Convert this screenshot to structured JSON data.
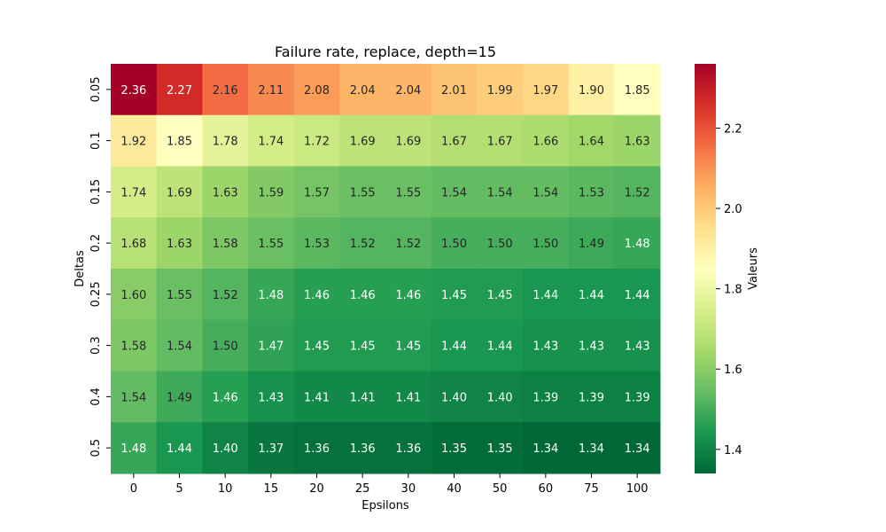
{
  "chart_data": {
    "type": "heatmap",
    "title": "Failure rate, replace, depth=15",
    "xlabel": "Epsilons",
    "ylabel": "Deltas",
    "x_categories": [
      "0",
      "5",
      "10",
      "15",
      "20",
      "25",
      "30",
      "40",
      "50",
      "60",
      "75",
      "100"
    ],
    "y_categories": [
      "0.05",
      "0.1",
      "0.15",
      "0.2",
      "0.25",
      "0.3",
      "0.4",
      "0.5"
    ],
    "values": [
      [
        2.36,
        2.27,
        2.16,
        2.11,
        2.08,
        2.04,
        2.04,
        2.01,
        1.99,
        1.97,
        1.9,
        1.85
      ],
      [
        1.92,
        1.85,
        1.78,
        1.74,
        1.72,
        1.69,
        1.69,
        1.67,
        1.67,
        1.66,
        1.64,
        1.63
      ],
      [
        1.74,
        1.69,
        1.63,
        1.59,
        1.57,
        1.55,
        1.55,
        1.54,
        1.54,
        1.54,
        1.53,
        1.52
      ],
      [
        1.68,
        1.63,
        1.58,
        1.55,
        1.53,
        1.52,
        1.52,
        1.5,
        1.5,
        1.5,
        1.49,
        1.48
      ],
      [
        1.6,
        1.55,
        1.52,
        1.48,
        1.46,
        1.46,
        1.46,
        1.45,
        1.45,
        1.44,
        1.44,
        1.44
      ],
      [
        1.58,
        1.54,
        1.5,
        1.47,
        1.45,
        1.45,
        1.45,
        1.44,
        1.44,
        1.43,
        1.43,
        1.43
      ],
      [
        1.54,
        1.49,
        1.46,
        1.43,
        1.41,
        1.41,
        1.41,
        1.4,
        1.4,
        1.39,
        1.39,
        1.39
      ],
      [
        1.48,
        1.44,
        1.4,
        1.37,
        1.36,
        1.36,
        1.36,
        1.35,
        1.35,
        1.34,
        1.34,
        1.34
      ]
    ],
    "value_format": "2 decimals",
    "colormap": "RdYlGn_r",
    "vmin": 1.34,
    "vmax": 2.36,
    "colorbar": {
      "label": "Valeurs",
      "ticks": [
        "1.4",
        "1.6",
        "1.8",
        "2.0",
        "2.2"
      ],
      "tick_values": [
        1.4,
        1.6,
        1.8,
        2.0,
        2.2
      ],
      "placement": "right"
    },
    "grid": false,
    "legend": "none"
  }
}
